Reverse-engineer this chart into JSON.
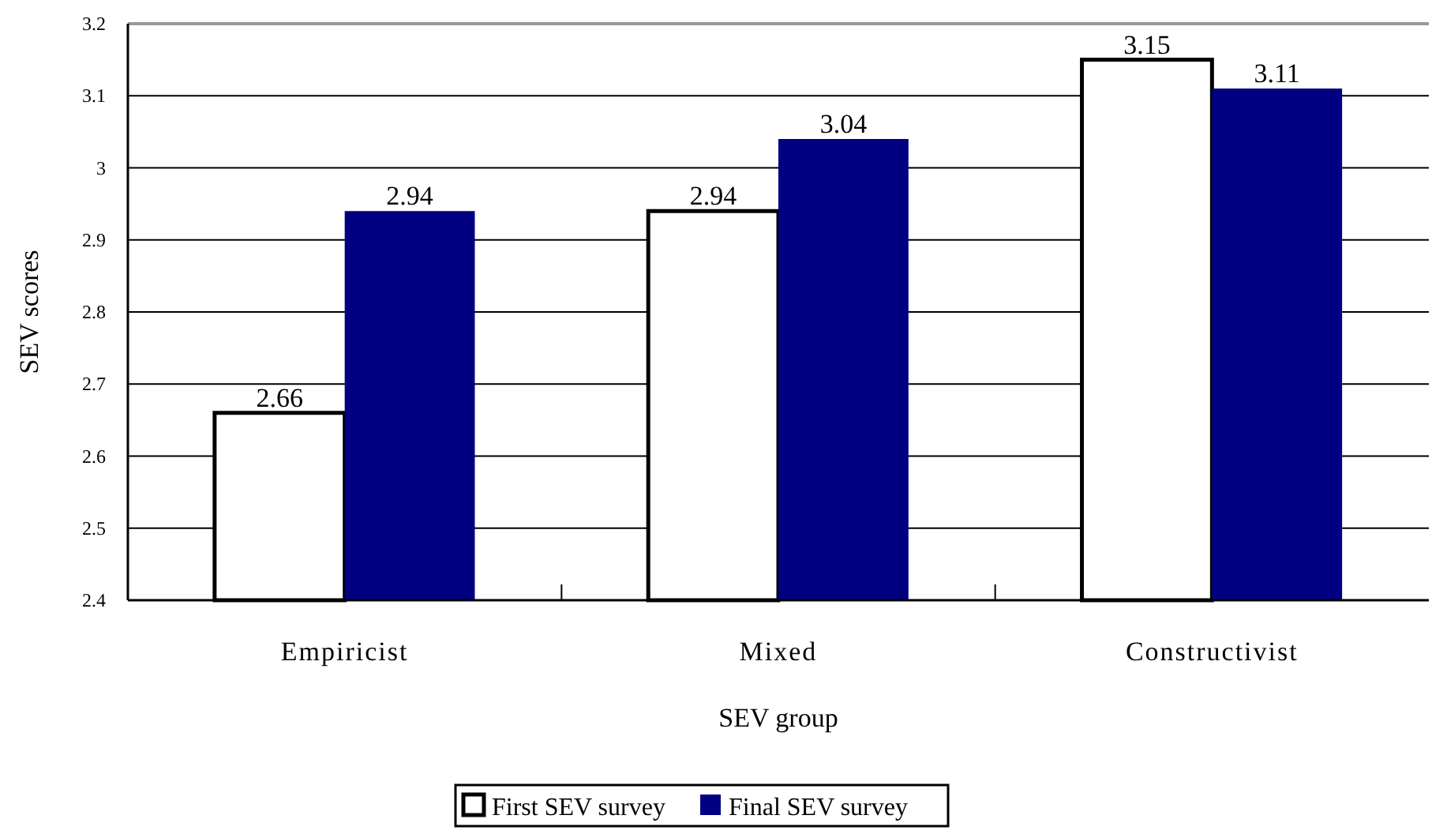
{
  "chart_data": {
    "type": "bar",
    "xlabel": "SEV group",
    "ylabel": "SEV scores",
    "categories": [
      "Empiricist",
      "Mixed",
      "Constructivist"
    ],
    "series": [
      {
        "name": "First SEV survey",
        "color": "#ffffff",
        "values": [
          2.66,
          2.94,
          3.15
        ]
      },
      {
        "name": "Final SEV survey",
        "color": "#000080",
        "values": [
          2.94,
          3.04,
          3.11
        ]
      }
    ],
    "ylim": [
      2.4,
      3.2
    ],
    "yticks": [
      2.4,
      2.5,
      2.6,
      2.7,
      2.8,
      2.9,
      3,
      3.1,
      3.2
    ],
    "grid": "y",
    "data_labels": true,
    "legend": "bottom"
  }
}
